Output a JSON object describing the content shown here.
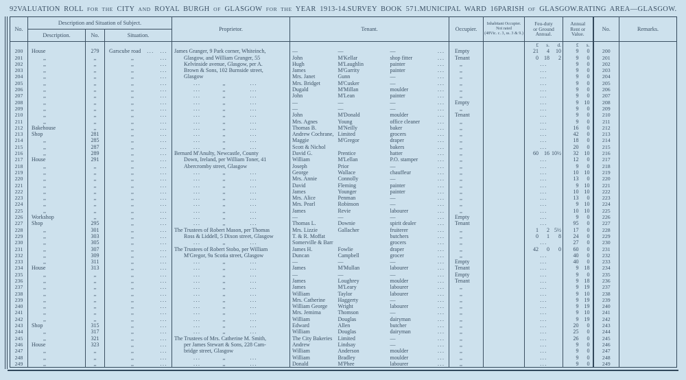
{
  "page": {
    "number": "92"
  },
  "header": {
    "title_segments": [
      {
        "t": "VALUATION ROLL "
      },
      {
        "t": "for the",
        "sc": true
      },
      {
        "t": " CITY "
      },
      {
        "t": "and",
        "sc": true
      },
      {
        "t": " ROYAL BURGH "
      },
      {
        "t": "of",
        "sc": true
      },
      {
        "t": " GLASGOW "
      },
      {
        "t": "for the",
        "sc": true
      },
      {
        "t": " YEAR 1913-14."
      }
    ],
    "survey": "SURVEY BOOK 571.",
    "ward": "MUNICIPAL WARD 16",
    "parish_segments": [
      {
        "t": "PARISH "
      },
      {
        "t": "of",
        "sc": true
      },
      {
        "t": " GLASGOW."
      }
    ],
    "rating": "RATING AREA—GLASGOW."
  },
  "table": {
    "columns": {
      "no": "No.",
      "group": "Description and Situation of Subject.",
      "desc": "Description.",
      "subno": "No.",
      "sit": "Situation.",
      "prop": "Proprietor.",
      "tenant": "Tenant.",
      "occ": "Occupier.",
      "inhab": "Inhabitant Occupier.\nNot rated\n(48Vic. c. 3, ss. 3 & 9.)",
      "feu": "Feu-duty\nor Ground\nAnnual.",
      "rent": "Annual\nRent or\nValue.",
      "no2": "No.",
      "remarks": "Remarks."
    },
    "money_header": {
      "feu": [
        "£",
        "s.",
        "d."
      ],
      "rent": [
        "£",
        "s."
      ]
    },
    "tokens": {
      "dots": "...",
      "ditto": ",,"
    },
    "row_fields": [
      "no",
      "desc",
      "subno",
      "situation",
      "prop_type(t=text,i=indented text,d=ditto)",
      "prop_text",
      "tenant_forename",
      "tenant_surname",
      "tenant_trade",
      "occupier",
      "feu_duty[£,s,d] or null",
      "rent[£,s]"
    ],
    "rows": [
      [
        "200",
        "House",
        "279",
        "Garscube road",
        "t",
        "James Granger, 9 Park corner, Whiteinch,",
        "—",
        "—",
        "—",
        "Empty",
        [
          "21",
          "4",
          "10"
        ],
        [
          "9",
          "0"
        ]
      ],
      [
        "201",
        ",,",
        ",,",
        ",,",
        "i",
        "Glasgow, and William Granger, 55",
        "John",
        "M'Kellar",
        "shop fitter",
        "Tenant",
        [
          "0",
          "18",
          "2"
        ],
        [
          "9",
          "0"
        ]
      ],
      [
        "202",
        ",,",
        ",,",
        ",,",
        "i",
        "Kelvinside avenue, Glasgow, per A.",
        "Hugh",
        "M'Laughlin",
        "painter",
        ",,",
        null,
        [
          "9",
          "0"
        ]
      ],
      [
        "203",
        ",,",
        ",,",
        ",,",
        "i",
        "Brown & Sons, 102 Burnside street,",
        "James",
        "M'Garrity",
        "painter",
        ",,",
        null,
        [
          "9",
          "0"
        ]
      ],
      [
        "204",
        ",,",
        ",,",
        ",,",
        "i",
        "Glasgow",
        "Mrs. Janet",
        "Gunn",
        "—",
        ",,",
        null,
        [
          "9",
          "0"
        ]
      ],
      [
        "205",
        ",,",
        ",,",
        ",,",
        "d",
        "",
        "Mrs. Bridget",
        "M'Cusker",
        "—",
        ",,",
        null,
        [
          "9",
          "0"
        ]
      ],
      [
        "206",
        ",,",
        ",,",
        ",,",
        "d",
        "",
        "Dugald",
        "M'Millan",
        "moulder",
        ",,",
        null,
        [
          "9",
          "0"
        ]
      ],
      [
        "207",
        ",,",
        ",,",
        ",,",
        "d",
        "",
        "John",
        "M'Lean",
        "painter",
        ",,",
        null,
        [
          "9",
          "0"
        ]
      ],
      [
        "208",
        ",,",
        ",,",
        ",,",
        "d",
        "",
        "—",
        "—",
        "—",
        "Empty",
        null,
        [
          "9",
          "10"
        ]
      ],
      [
        "209",
        ",,",
        ",,",
        ",,",
        "d",
        "",
        "—",
        "—",
        "—",
        ",,",
        null,
        [
          "9",
          "0"
        ]
      ],
      [
        "210",
        ",,",
        ",,",
        ",,",
        "d",
        "",
        "John",
        "M'Donald",
        "moulder",
        "Tenant",
        null,
        [
          "9",
          "0"
        ]
      ],
      [
        "211",
        ",,",
        ",,",
        ",,",
        "d",
        "",
        "Mrs. Agnes",
        "Young",
        "office cleaner",
        ",,",
        null,
        [
          "9",
          "0"
        ]
      ],
      [
        "212",
        "Bakehouse",
        ",,",
        ",,",
        "d",
        "",
        "Thomas B.",
        "M'Neilly",
        "baker",
        ",,",
        null,
        [
          "16",
          "0"
        ]
      ],
      [
        "213",
        "Shop",
        "281",
        ",,",
        "d",
        "",
        "Andrew Cochrane,",
        "Limited",
        "grocers",
        ",,",
        null,
        [
          "42",
          "0"
        ]
      ],
      [
        "214",
        ",,",
        "285",
        ",,",
        "d",
        "",
        "Maggie",
        "M'Gregor",
        "draper",
        ",,",
        null,
        [
          "18",
          "0"
        ]
      ],
      [
        "215",
        ",,",
        "287",
        ",,",
        "d",
        "",
        "Scott & Nichol",
        "",
        "bakers",
        ",,",
        null,
        [
          "20",
          "0"
        ]
      ],
      [
        "216",
        ",,",
        "289",
        ",,",
        "t",
        "Bernard M'Anulty, Newcastle, County",
        "David G.",
        "Prentice",
        "hatter",
        ",,",
        [
          "60",
          "16",
          "10½"
        ],
        [
          "32",
          "10"
        ]
      ],
      [
        "217",
        "House",
        "291",
        ",,",
        "i",
        "Down, Ireland, per William Toner, 41",
        "William",
        "M'Lellan",
        "P.O. stamper",
        ",,",
        null,
        [
          "12",
          "0"
        ]
      ],
      [
        "218",
        ",,",
        ",,",
        ",,",
        "i",
        "Abercromby street, Glasgow",
        "Joseph",
        "Prior",
        "—",
        ",,",
        null,
        [
          "9",
          "0"
        ]
      ],
      [
        "219",
        ",,",
        ",,",
        ",,",
        "d",
        "",
        "George",
        "Wallace",
        "chauffeur",
        ",,",
        null,
        [
          "10",
          "10"
        ]
      ],
      [
        "220",
        ",,",
        ",,",
        ",,",
        "d",
        "",
        "Mrs. Annie",
        "Connolly",
        "—",
        ",,",
        null,
        [
          "13",
          "0"
        ]
      ],
      [
        "221",
        ",,",
        ",,",
        ",,",
        "d",
        "",
        "David",
        "Fleming",
        "painter",
        ",,",
        null,
        [
          "9",
          "10"
        ]
      ],
      [
        "222",
        ",,",
        ",,",
        ",,",
        "d",
        "",
        "James",
        "Younger",
        "painter",
        ",,",
        null,
        [
          "10",
          "10"
        ]
      ],
      [
        "223",
        ",,",
        ",,",
        ",,",
        "d",
        "",
        "Mrs. Alice",
        "Penman",
        "—",
        ",,",
        null,
        [
          "13",
          "0"
        ]
      ],
      [
        "224",
        ",,",
        ",,",
        ",,",
        "d",
        "",
        "Mrs. Pearl",
        "Robinson",
        "—",
        ",,",
        null,
        [
          "9",
          "10"
        ]
      ],
      [
        "225",
        ",,",
        ",,",
        ",,",
        "d",
        "",
        "James",
        "Revie",
        "labourer",
        ",,",
        null,
        [
          "10",
          "10"
        ]
      ],
      [
        "226",
        "Workshop",
        ",,",
        ",,",
        "d",
        "",
        "—",
        "—",
        "—",
        "Empty",
        null,
        [
          "9",
          "0"
        ]
      ],
      [
        "227",
        "Shop",
        "295",
        ",,",
        "d",
        "",
        "Thomas L.",
        "Downie",
        "spirit dealer",
        "Tenant",
        null,
        [
          "95",
          "0"
        ]
      ],
      [
        "228",
        ",,",
        "301",
        ",,",
        "t",
        "The Trustees of Robert Mason, per Thomas",
        "Mrs. Lizzie",
        "Gallacher",
        "fruiterer",
        ",,",
        [
          "1",
          "2",
          "5½"
        ],
        [
          "17",
          "0"
        ]
      ],
      [
        "229",
        ",,",
        "303",
        ",,",
        "i",
        "Ross & Liddell, 5 Dixon street, Glasgow",
        "T. & R. Moffat",
        "",
        "butchers",
        ",,",
        [
          "0",
          "1",
          "8"
        ],
        [
          "24",
          "0"
        ]
      ],
      [
        "230",
        ",,",
        "305",
        ",,",
        "d",
        "",
        "Somerville & Barr",
        "",
        "grocers",
        ",,",
        null,
        [
          "27",
          "0"
        ]
      ],
      [
        "231",
        ",,",
        "307",
        ",,",
        "t",
        "The Trustees of Robert Stobo, per William",
        "James H.",
        "Fowlie",
        "draper",
        ",,",
        [
          "42",
          "0",
          "0"
        ],
        [
          "60",
          "0"
        ]
      ],
      [
        "232",
        ",,",
        "309",
        ",,",
        "i",
        "M'Gregor, 9a Scotia street, Glasgow",
        "Duncan",
        "Campbell",
        "grocer",
        ",,",
        null,
        [
          "40",
          "0"
        ]
      ],
      [
        "233",
        ",,",
        "311",
        ",,",
        "d",
        "",
        "—",
        "—",
        "—",
        "Empty",
        null,
        [
          "40",
          "0"
        ]
      ],
      [
        "234",
        "House",
        "313",
        ",,",
        "d",
        "",
        "James",
        "M'Mullan",
        "labourer",
        "Tenant",
        null,
        [
          "9",
          "18"
        ]
      ],
      [
        "235",
        ",,",
        ",,",
        ",,",
        "d",
        "",
        "—",
        "—",
        "—",
        "Empty",
        null,
        [
          "9",
          "0"
        ]
      ],
      [
        "236",
        ",,",
        ",,",
        ",,",
        "d",
        "",
        "James",
        "Loughrey",
        "moulder",
        "Tenant",
        null,
        [
          "9",
          "18"
        ]
      ],
      [
        "237",
        ",,",
        ",,",
        ",,",
        "d",
        "",
        "James",
        "M'Leary",
        "labourer",
        ",,",
        null,
        [
          "9",
          "19"
        ]
      ],
      [
        "238",
        ",,",
        ",,",
        ",,",
        "d",
        "",
        "William",
        "Taylor",
        "labourer",
        ",,",
        null,
        [
          "9",
          "10"
        ]
      ],
      [
        "239",
        ",,",
        ",,",
        ",,",
        "d",
        "",
        "Mrs. Catherine",
        "Haggerty",
        "—",
        ",,",
        null,
        [
          "9",
          "19"
        ]
      ],
      [
        "240",
        ",,",
        ",,",
        ",,",
        "d",
        "",
        "William George",
        "Wright",
        "labourer",
        ",,",
        null,
        [
          "9",
          "19"
        ]
      ],
      [
        "241",
        ",,",
        ",,",
        ",,",
        "d",
        "",
        "Mrs. Jemima",
        "Thomson",
        "—",
        ",,",
        null,
        [
          "9",
          "10"
        ]
      ],
      [
        "242",
        ",,",
        ",,",
        ",,",
        "d",
        "",
        "William",
        "Douglas",
        "dairyman",
        ",,",
        null,
        [
          "9",
          "19"
        ]
      ],
      [
        "243",
        "Shop",
        "315",
        ",,",
        "d",
        "",
        "Edward",
        "Allen",
        "butcher",
        ",,",
        null,
        [
          "20",
          "0"
        ]
      ],
      [
        "244",
        ",,",
        "317",
        ",,",
        "d",
        "",
        "William",
        "Douglas",
        "dairyman",
        ",,",
        null,
        [
          "25",
          "0"
        ]
      ],
      [
        "245",
        ",,",
        "321",
        ",,",
        "t",
        "The Trustees of Mrs. Catherine M. Smith,",
        "The City Bakeries",
        "Limited",
        "—",
        ",,",
        null,
        [
          "26",
          "0"
        ]
      ],
      [
        "246",
        "House",
        "323",
        ",,",
        "i",
        "per James Stewart & Sons, 228 Cam-",
        "Andrew",
        "Lindsay",
        "—",
        ",,",
        null,
        [
          "9",
          "0"
        ]
      ],
      [
        "247",
        ",,",
        ",,",
        ",,",
        "i",
        "bridge street, Glasgow",
        "William",
        "Anderson",
        "moulder",
        ",,",
        null,
        [
          "9",
          "0"
        ]
      ],
      [
        "248",
        ",,",
        ",,",
        ",,",
        "d",
        "",
        "William",
        "Bradley",
        "moulder",
        ",,",
        null,
        [
          "9",
          "0"
        ]
      ],
      [
        "249",
        ",,",
        ",,",
        ",,",
        "d",
        "",
        "Donald",
        "M'Phee",
        "labourer",
        ",,",
        null,
        [
          "9",
          "0"
        ]
      ]
    ]
  }
}
